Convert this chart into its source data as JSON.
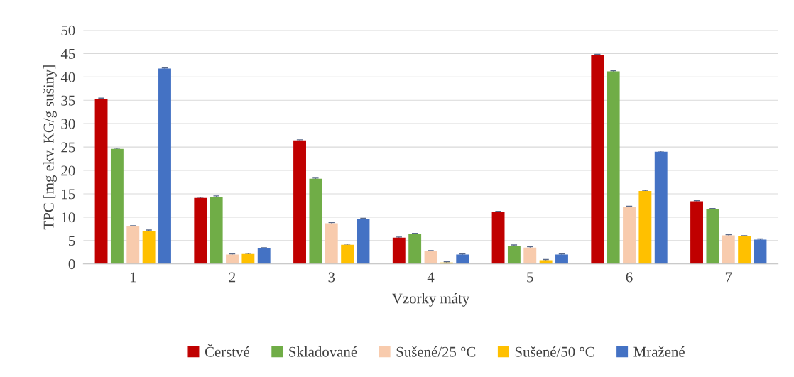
{
  "chart_data": {
    "type": "bar",
    "xlabel": "Vzorky máty",
    "ylabel": "TPC [mg ekv. KG/g sušiny]",
    "categories": [
      "1",
      "2",
      "3",
      "4",
      "5",
      "6",
      "7"
    ],
    "series": [
      {
        "name": "Čerstvé",
        "color": "#c00000",
        "values": [
          35.3,
          14.1,
          26.4,
          5.6,
          11.1,
          44.7,
          13.4
        ],
        "errors": [
          0.15,
          0.15,
          0.15,
          0.15,
          0.15,
          0.15,
          0.15
        ]
      },
      {
        "name": "Skladované",
        "color": "#70ad47",
        "values": [
          24.6,
          14.4,
          18.2,
          6.4,
          3.9,
          41.2,
          11.7
        ],
        "errors": [
          0.15,
          0.15,
          0.15,
          0.15,
          0.15,
          0.15,
          0.15
        ]
      },
      {
        "name": "Sušené/25 °C",
        "color": "#f8cbad",
        "values": [
          8.0,
          2.0,
          8.7,
          2.7,
          3.5,
          12.2,
          6.1
        ],
        "errors": [
          0.15,
          0.15,
          0.15,
          0.15,
          0.15,
          0.15,
          0.15
        ]
      },
      {
        "name": "Sušené/50 °C",
        "color": "#ffc000",
        "values": [
          7.1,
          2.1,
          4.1,
          0.3,
          0.8,
          15.6,
          5.9
        ],
        "errors": [
          0.15,
          0.15,
          0.15,
          0.15,
          0.15,
          0.15,
          0.15
        ]
      },
      {
        "name": "Mražené",
        "color": "#4472c4",
        "values": [
          41.8,
          3.3,
          9.6,
          2.0,
          2.0,
          24.0,
          5.2
        ],
        "errors": [
          0.15,
          0.15,
          0.15,
          0.15,
          0.15,
          0.15,
          0.15
        ]
      }
    ],
    "ylim": [
      0,
      50
    ],
    "yticks": [
      0,
      5,
      10,
      15,
      20,
      25,
      30,
      35,
      40,
      45,
      50
    ],
    "grid": "y",
    "legend": "bottom"
  }
}
